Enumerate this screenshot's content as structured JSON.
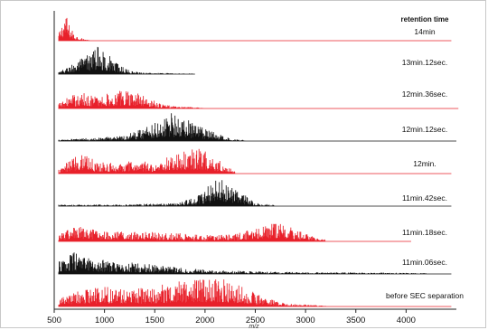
{
  "chart_data": {
    "type": "line",
    "title": "",
    "legend_title": "retention time",
    "xlabel": "m/z",
    "ylabel": "",
    "xlim": [
      500,
      4500
    ],
    "xticks": [
      500,
      1000,
      1500,
      2000,
      2500,
      3000,
      3500,
      4000
    ],
    "grid": false,
    "series": [
      {
        "name": "14min",
        "color": "#e8202a",
        "start": 540,
        "end": 4450,
        "noise_end": 850,
        "envelope": [
          [
            555,
            0.3
          ],
          [
            580,
            0.65
          ],
          [
            610,
            1.0
          ],
          [
            650,
            0.55
          ],
          [
            700,
            0.25
          ],
          [
            760,
            0.1
          ],
          [
            850,
            0.02
          ]
        ]
      },
      {
        "name": "13min.12sec.",
        "color": "#111111",
        "start": 540,
        "end": 1900,
        "noise_end": 1900,
        "envelope": [
          [
            560,
            0.1
          ],
          [
            700,
            0.4
          ],
          [
            850,
            0.75
          ],
          [
            930,
            1.0
          ],
          [
            1020,
            0.75
          ],
          [
            1120,
            0.4
          ],
          [
            1250,
            0.12
          ],
          [
            1400,
            0.05
          ],
          [
            1900,
            0.02
          ]
        ]
      },
      {
        "name": "12min.36sec.",
        "color": "#e8202a",
        "start": 540,
        "end": 4520,
        "noise_end": 2000,
        "envelope": [
          [
            560,
            0.2
          ],
          [
            650,
            0.45
          ],
          [
            800,
            0.55
          ],
          [
            950,
            0.45
          ],
          [
            1100,
            0.6
          ],
          [
            1250,
            0.7
          ],
          [
            1400,
            0.45
          ],
          [
            1550,
            0.2
          ],
          [
            1700,
            0.08
          ],
          [
            2000,
            0.02
          ]
        ]
      },
      {
        "name": "12min.12sec.",
        "color": "#111111",
        "start": 540,
        "end": 4500,
        "noise_end": 2400,
        "envelope": [
          [
            560,
            0.05
          ],
          [
            900,
            0.12
          ],
          [
            1200,
            0.2
          ],
          [
            1450,
            0.6
          ],
          [
            1650,
            1.0
          ],
          [
            1850,
            0.7
          ],
          [
            2050,
            0.35
          ],
          [
            2250,
            0.1
          ],
          [
            2400,
            0.03
          ]
        ]
      },
      {
        "name": "12min.",
        "color": "#e8202a",
        "start": 540,
        "end": 4450,
        "noise_end": 2300,
        "envelope": [
          [
            560,
            0.15
          ],
          [
            700,
            0.65
          ],
          [
            800,
            0.85
          ],
          [
            900,
            0.45
          ],
          [
            1100,
            0.35
          ],
          [
            1300,
            0.45
          ],
          [
            1500,
            0.4
          ],
          [
            1700,
            0.7
          ],
          [
            1950,
            0.9
          ],
          [
            2100,
            0.6
          ],
          [
            2250,
            0.2
          ],
          [
            2350,
            0.04
          ]
        ]
      },
      {
        "name": "11min.42sec.",
        "color": "#111111",
        "start": 540,
        "end": 4450,
        "noise_end": 2700,
        "envelope": [
          [
            560,
            0.05
          ],
          [
            1200,
            0.06
          ],
          [
            1700,
            0.1
          ],
          [
            1900,
            0.3
          ],
          [
            2100,
            0.9
          ],
          [
            2200,
            1.0
          ],
          [
            2350,
            0.5
          ],
          [
            2500,
            0.12
          ],
          [
            2700,
            0.03
          ]
        ]
      },
      {
        "name": "11min.18sec.",
        "color": "#e8202a",
        "start": 540,
        "end": 4050,
        "noise_end": 3200,
        "envelope": [
          [
            560,
            0.3
          ],
          [
            700,
            0.55
          ],
          [
            900,
            0.4
          ],
          [
            1300,
            0.35
          ],
          [
            1700,
            0.3
          ],
          [
            2000,
            0.22
          ],
          [
            2300,
            0.25
          ],
          [
            2550,
            0.55
          ],
          [
            2700,
            0.65
          ],
          [
            2900,
            0.45
          ],
          [
            3100,
            0.12
          ],
          [
            3250,
            0.03
          ]
        ]
      },
      {
        "name": "11min.06sec.",
        "color": "#111111",
        "start": 540,
        "end": 4450,
        "noise_end": 4200,
        "envelope": [
          [
            560,
            0.45
          ],
          [
            700,
            0.75
          ],
          [
            850,
            0.55
          ],
          [
            1100,
            0.45
          ],
          [
            1400,
            0.35
          ],
          [
            1700,
            0.25
          ],
          [
            2000,
            0.15
          ],
          [
            2500,
            0.09
          ],
          [
            3000,
            0.06
          ],
          [
            3500,
            0.05
          ],
          [
            4200,
            0.03
          ]
        ]
      },
      {
        "name": "before SEC separation",
        "color": "#e8202a",
        "start": 540,
        "end": 4450,
        "noise_end": 3200,
        "envelope": [
          [
            560,
            0.3
          ],
          [
            700,
            0.5
          ],
          [
            900,
            0.65
          ],
          [
            1100,
            0.7
          ],
          [
            1400,
            0.65
          ],
          [
            1700,
            0.85
          ],
          [
            1900,
            0.95
          ],
          [
            2050,
            1.0
          ],
          [
            2200,
            0.95
          ],
          [
            2400,
            0.65
          ],
          [
            2600,
            0.3
          ],
          [
            2800,
            0.1
          ],
          [
            3200,
            0.03
          ]
        ]
      }
    ]
  }
}
